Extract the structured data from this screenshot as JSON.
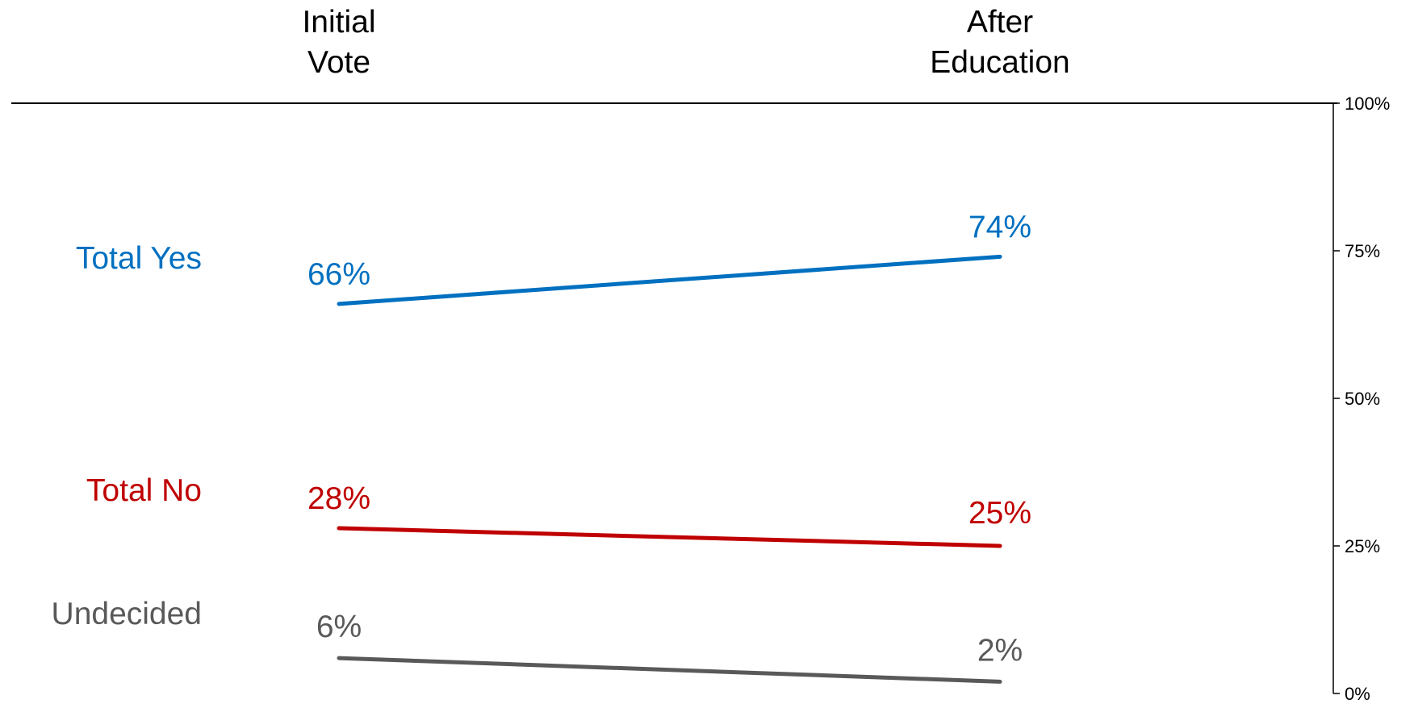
{
  "chart_data": {
    "type": "line",
    "categories": [
      [
        "Initial",
        "Vote"
      ],
      [
        "After",
        "Education"
      ]
    ],
    "series": [
      {
        "name": "Total Yes",
        "values": [
          66,
          74
        ],
        "labels": [
          "66%",
          "74%"
        ],
        "color": "#0070C0"
      },
      {
        "name": "Total No",
        "values": [
          28,
          25
        ],
        "labels": [
          "28%",
          "25%"
        ],
        "color": "#C00000"
      },
      {
        "name": "Undecided",
        "values": [
          6,
          2
        ],
        "labels": [
          "6%",
          "2%"
        ],
        "color": "#595959"
      }
    ],
    "ylim": [
      0,
      100
    ],
    "yticks": [
      {
        "value": 100,
        "label": "100%"
      },
      {
        "value": 75,
        "label": "75%"
      },
      {
        "value": 50,
        "label": "50%"
      },
      {
        "value": 25,
        "label": "25%"
      },
      {
        "value": 0,
        "label": "0%"
      }
    ],
    "y_axis_position": "right",
    "grid": false,
    "legend": "left"
  }
}
